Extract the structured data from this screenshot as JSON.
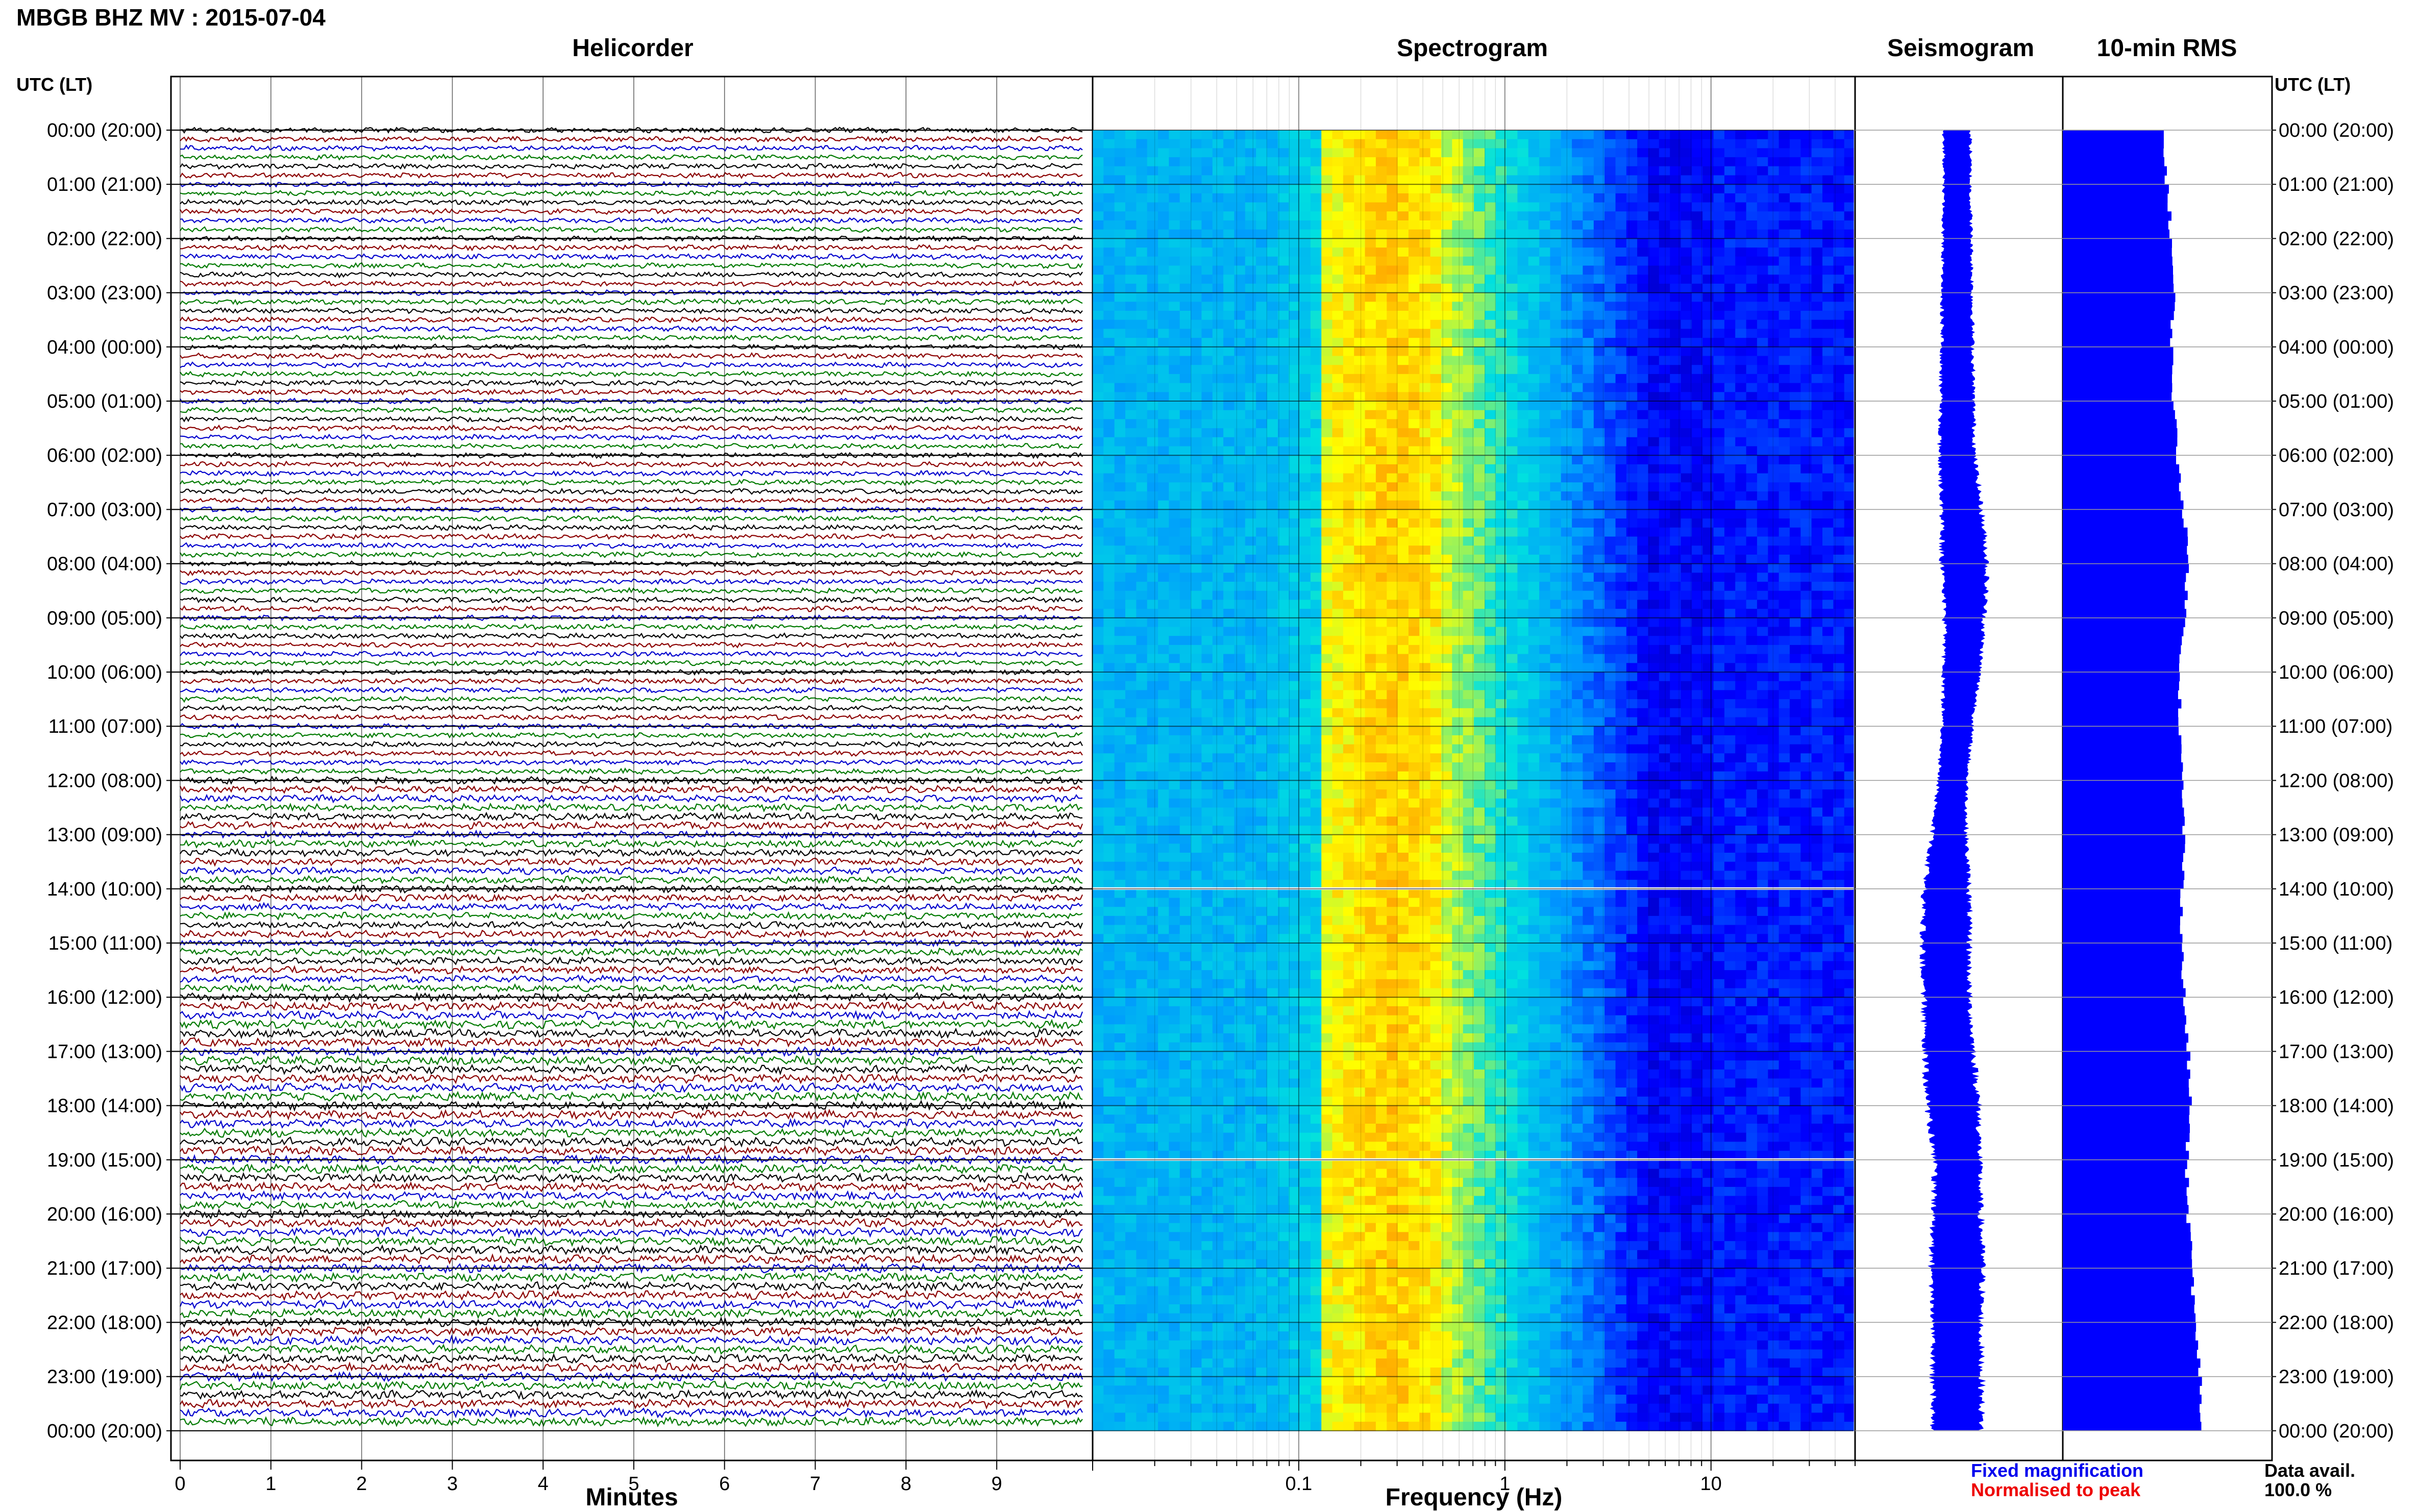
{
  "header": {
    "title": "MBGB BHZ MV : 2015-07-04"
  },
  "panels": {
    "helicorder": "Helicorder",
    "spectrogram": "Spectrogram",
    "seismogram": "Seismogram",
    "rms": "10-min RMS"
  },
  "axis_labels": {
    "left_time": "UTC (LT)",
    "right_time": "UTC (LT)",
    "helicorder_x": "Minutes",
    "spectrogram_x": "Frequency (Hz)"
  },
  "legend": {
    "fixed": "Fixed magnification",
    "normalised": "Normalised to peak",
    "fixed_color": "#0000ee",
    "normalised_color": "#ee0000"
  },
  "data_availability": {
    "label": "Data avail.",
    "value": "100.0 %"
  },
  "colors": {
    "trace_cycle": [
      "#000000",
      "#8b0000",
      "#0000cd",
      "#007a00"
    ],
    "seismogram": "#0000ff",
    "rms_bars": "#0000ff",
    "spectrogram_colormap": [
      "#00008b",
      "#0000ff",
      "#0096ff",
      "#00e0e0",
      "#ffff00",
      "#ff8000"
    ]
  },
  "chart_data": [
    {
      "type": "line",
      "title": "Helicorder",
      "xlabel": "Minutes",
      "ylabel": "UTC (LT)",
      "xlim": [
        0,
        10
      ],
      "x_ticks": [
        "0",
        "1",
        "2",
        "3",
        "4",
        "5",
        "6",
        "7",
        "8",
        "9"
      ],
      "rows_per_hour": 6,
      "minutes_per_row": 10,
      "total_rows": 144,
      "time_ticks": [
        "00:00 (20:00)",
        "01:00 (21:00)",
        "02:00 (22:00)",
        "03:00 (23:00)",
        "04:00 (00:00)",
        "05:00 (01:00)",
        "06:00 (02:00)",
        "07:00 (03:00)",
        "08:00 (04:00)",
        "09:00 (05:00)",
        "10:00 (06:00)",
        "11:00 (07:00)",
        "12:00 (08:00)",
        "13:00 (09:00)",
        "14:00 (10:00)",
        "15:00 (11:00)",
        "16:00 (12:00)",
        "17:00 (13:00)",
        "18:00 (14:00)",
        "19:00 (15:00)",
        "20:00 (16:00)",
        "21:00 (17:00)",
        "22:00 (18:00)",
        "23:00 (19:00)",
        "00:00 (20:00)"
      ]
    },
    {
      "type": "heatmap",
      "title": "Spectrogram",
      "xlabel": "Frequency (Hz)",
      "x_scale": "log",
      "xlim": [
        0.01,
        50
      ],
      "x_tick_labels": [
        "0.1",
        "1",
        "10"
      ],
      "peak_band_hz": [
        0.2,
        0.6
      ],
      "data_gaps_utc": [
        "14:00",
        "19:00"
      ]
    },
    {
      "type": "line",
      "title": "Seismogram",
      "amplitude_by_hour": [
        0.28,
        0.28,
        0.3,
        0.32,
        0.33,
        0.35,
        0.37,
        0.42,
        0.48,
        0.42,
        0.38,
        0.32,
        0.3,
        0.36,
        0.48,
        0.5,
        0.48,
        0.52,
        0.55,
        0.48,
        0.5,
        0.55,
        0.5,
        0.52
      ]
    },
    {
      "type": "bar",
      "title": "10-min RMS",
      "orientation": "horizontal",
      "rms_by_hour": [
        0.48,
        0.5,
        0.52,
        0.53,
        0.52,
        0.53,
        0.55,
        0.58,
        0.6,
        0.58,
        0.56,
        0.56,
        0.57,
        0.58,
        0.57,
        0.57,
        0.58,
        0.6,
        0.61,
        0.59,
        0.6,
        0.62,
        0.63,
        0.66
      ]
    }
  ]
}
